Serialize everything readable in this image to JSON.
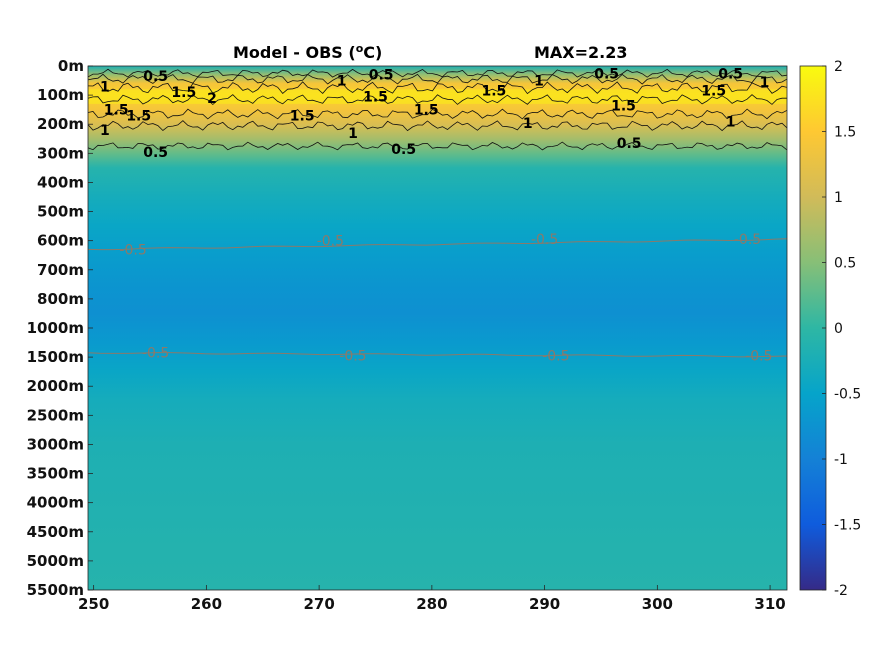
{
  "chart_data": {
    "type": "heatmap",
    "title": "Model - OBS (",
    "title_unit": "o",
    "title_suffix": "C)",
    "annotation": "MAX=2.23",
    "xlim": [
      249.5,
      311.5
    ],
    "x_ticks": [
      250,
      260,
      270,
      280,
      290,
      300,
      310
    ],
    "y_depth_levels": [
      "0m",
      "100m",
      "200m",
      "300m",
      "400m",
      "500m",
      "600m",
      "700m",
      "800m",
      "1000m",
      "1500m",
      "2000m",
      "2500m",
      "3000m",
      "3500m",
      "4000m",
      "4500m",
      "5000m",
      "5500m"
    ],
    "colorbar": {
      "range": [
        -2,
        2
      ],
      "ticks": [
        "2",
        "1.5",
        "1",
        "0.5",
        "0",
        "-0.5",
        "-1",
        "-1.5",
        "-2"
      ],
      "colormap": "parula"
    },
    "depth_profile": [
      {
        "level": 0,
        "value": -0.2
      },
      {
        "level": 0.3,
        "value": 0.6
      },
      {
        "level": 0.6,
        "value": 1.4
      },
      {
        "level": 1.0,
        "value": 1.6
      },
      {
        "level": 1.5,
        "value": 1.4
      },
      {
        "level": 2.0,
        "value": 1.1
      },
      {
        "level": 2.5,
        "value": 0.7
      },
      {
        "level": 3.0,
        "value": 0.3
      },
      {
        "level": 3.5,
        "value": -0.1
      },
      {
        "level": 4.5,
        "value": -0.3
      },
      {
        "level": 5.5,
        "value": -0.45
      },
      {
        "level": 6.5,
        "value": -0.6
      },
      {
        "level": 7.5,
        "value": -0.72
      },
      {
        "level": 8.5,
        "value": -0.78
      },
      {
        "level": 9.5,
        "value": -0.65
      },
      {
        "level": 10.5,
        "value": -0.45
      },
      {
        "level": 11.5,
        "value": -0.3
      },
      {
        "level": 13,
        "value": -0.2
      },
      {
        "level": 18,
        "value": -0.1
      }
    ],
    "contours_positive": [
      {
        "value": 0.5,
        "labels": [
          [
            255.5,
            0.35,
            "0.5"
          ],
          [
            275.5,
            0.3,
            "0.5"
          ],
          [
            295.5,
            0.25,
            "0.5"
          ],
          [
            306.5,
            0.25,
            "0.5"
          ],
          [
            255.5,
            2.95,
            "0.5"
          ],
          [
            277.5,
            2.85,
            "0.5"
          ],
          [
            297.5,
            2.65,
            "0.5"
          ]
        ]
      },
      {
        "value": 1,
        "labels": [
          [
            251,
            0.7,
            "1"
          ],
          [
            272,
            0.5,
            "1"
          ],
          [
            289.5,
            0.5,
            "1"
          ],
          [
            309.5,
            0.55,
            "1"
          ],
          [
            251,
            2.2,
            "1"
          ],
          [
            273,
            2.3,
            "1"
          ],
          [
            288.5,
            1.95,
            "1"
          ],
          [
            306.5,
            1.9,
            "1"
          ]
        ]
      },
      {
        "value": 1.5,
        "labels": [
          [
            258,
            0.9,
            "1.5"
          ],
          [
            275,
            1.05,
            "1.5"
          ],
          [
            285.5,
            0.85,
            "1.5"
          ],
          [
            305,
            0.85,
            "1.5"
          ],
          [
            254,
            1.7,
            "1.5"
          ],
          [
            268.5,
            1.7,
            "1.5"
          ],
          [
            279.5,
            1.5,
            "1.5"
          ],
          [
            297,
            1.35,
            "1.5"
          ],
          [
            252,
            1.5,
            "1.5"
          ]
        ]
      },
      {
        "value": 2,
        "labels": [
          [
            260.5,
            1.1,
            "2"
          ]
        ]
      }
    ],
    "contours_negative": [
      {
        "value": -0.5,
        "labels": [
          [
            253.5,
            6.3,
            "-0.5"
          ],
          [
            271,
            6.0,
            "-0.5"
          ],
          [
            290,
            5.95,
            "-0.5"
          ],
          [
            308,
            5.95,
            "-0.5"
          ],
          [
            255.5,
            9.85,
            "-0.5"
          ],
          [
            273,
            9.95,
            "-0.5"
          ],
          [
            291,
            9.95,
            "-0.5"
          ],
          [
            309,
            9.95,
            "-0.5"
          ]
        ]
      }
    ]
  }
}
